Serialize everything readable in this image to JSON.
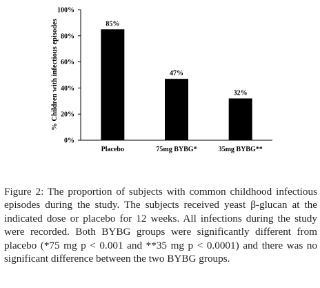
{
  "chart_data": {
    "type": "bar",
    "categories": [
      "Placebo",
      "75mg BYBG*",
      "35mg BYBG**"
    ],
    "values": [
      85,
      47,
      32
    ],
    "data_labels": [
      "85%",
      "47%",
      "32%"
    ],
    "ylabel": "% Children with infectious episodes",
    "yticks": [
      "0%",
      "20%",
      "40%",
      "60%",
      "80%",
      "100%"
    ],
    "ylim": [
      0,
      100
    ],
    "grid": false,
    "bar_color": "#000000"
  },
  "caption": {
    "label": "Figure 2:",
    "text": " The proportion of subjects with common childhood infectious episodes during the study. The subjects received yeast β-glucan at the indicated dose or placebo for 12 weeks. All infections during the study were recorded. Both BYBG groups were significantly different from placebo (*75 mg p < 0.001 and **35 mg p < 0.0001) and there was no significant difference between the two BYBG groups."
  }
}
